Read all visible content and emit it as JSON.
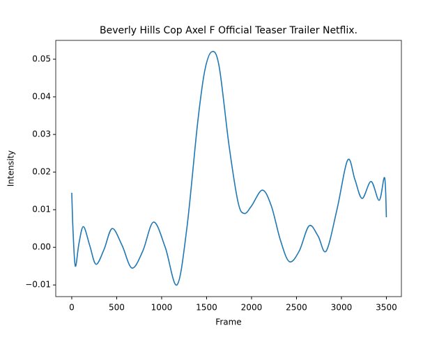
{
  "chart_data": {
    "type": "line",
    "title": "Beverly Hills Cop Axel F  Official Teaser Trailer  Netflix.",
    "x_label": "Frame",
    "y_label": "Intensity",
    "x": [
      0,
      15,
      40,
      80,
      130,
      200,
      270,
      360,
      450,
      560,
      670,
      790,
      910,
      1040,
      1170,
      1280,
      1400,
      1480,
      1560,
      1640,
      1750,
      1850,
      1920,
      2000,
      2120,
      2220,
      2320,
      2420,
      2530,
      2640,
      2740,
      2830,
      2950,
      3070,
      3150,
      3230,
      3330,
      3420,
      3480,
      3500
    ],
    "series": [
      {
        "name": "Intensity",
        "color": "#1f77b4",
        "values": [
          0.0145,
          0.004,
          -0.005,
          0.001,
          0.0055,
          0.0005,
          -0.0045,
          -0.0005,
          0.005,
          0.0005,
          -0.0055,
          -0.001,
          0.0067,
          0.0,
          -0.01,
          0.005,
          0.033,
          0.047,
          0.052,
          0.048,
          0.027,
          0.012,
          0.009,
          0.011,
          0.0152,
          0.011,
          0.002,
          -0.0038,
          -0.001,
          0.0057,
          0.003,
          -0.001,
          0.01,
          0.0232,
          0.018,
          0.013,
          0.0175,
          0.0125,
          0.0185,
          0.008
        ]
      }
    ],
    "xlim": [
      -178,
      3667
    ],
    "xticks": [
      0,
      500,
      1000,
      1500,
      2000,
      2500,
      3000,
      3500
    ],
    "ylim": [
      -0.0131,
      0.055
    ],
    "yticks": [
      {
        "value": -0.01,
        "label": "−0.01"
      },
      {
        "value": 0,
        "label": "0.00"
      },
      {
        "value": 0.01,
        "label": "0.01"
      },
      {
        "value": 0.02,
        "label": "0.02"
      },
      {
        "value": 0.03,
        "label": "0.03"
      },
      {
        "value": 0.04,
        "label": "0.04"
      },
      {
        "value": 0.05,
        "label": "0.05"
      }
    ]
  }
}
